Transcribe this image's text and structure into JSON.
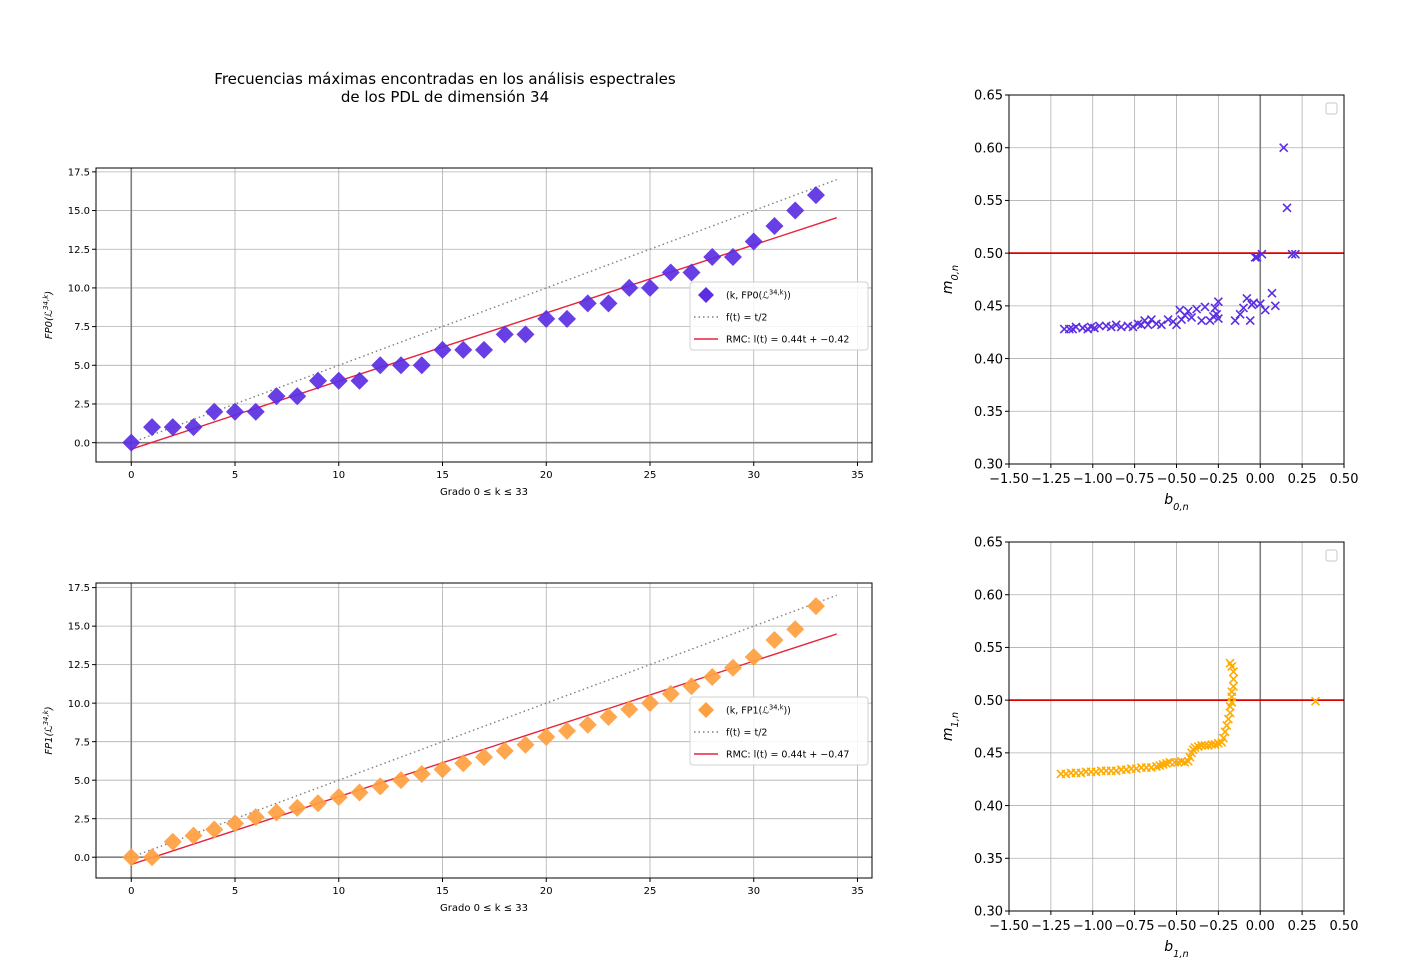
{
  "figure": {
    "title_line1": "Frecuencias máximas encontradas en los análisis espectrales",
    "title_line2": "de los PDL de dimensión 34"
  },
  "chart_data": [
    {
      "id": "fp0",
      "type": "scatter",
      "xlabel": "Grado 0 ≤ k ≤ 33",
      "ylabel": "FP0(ℒ^{34,k})",
      "xlim": [
        -1.7,
        35.7
      ],
      "ylim": [
        -1.25,
        17.75
      ],
      "xticks": [
        0,
        5,
        10,
        15,
        20,
        25,
        30,
        35
      ],
      "yticks": [
        0.0,
        2.5,
        5.0,
        7.5,
        10.0,
        12.5,
        15.0,
        17.5
      ],
      "xtick_labels": [
        "0",
        "5",
        "10",
        "15",
        "20",
        "25",
        "30",
        "35"
      ],
      "ytick_labels": [
        "0.0",
        "2.5",
        "5.0",
        "7.5",
        "10.0",
        "12.5",
        "15.0",
        "17.5"
      ],
      "grid": true,
      "legend_position": "center-right",
      "colors": {
        "points": "#5b2ee3",
        "fit": "#e8223a",
        "half": "#808080"
      },
      "series": [
        {
          "name": "(k, FP0(ℒ^{34,k}))",
          "kind": "diamond",
          "x": [
            0,
            1,
            2,
            3,
            4,
            5,
            6,
            7,
            8,
            9,
            10,
            11,
            12,
            13,
            14,
            15,
            16,
            17,
            18,
            19,
            20,
            21,
            22,
            23,
            24,
            25,
            26,
            27,
            28,
            29,
            30,
            31,
            32,
            33
          ],
          "y": [
            0,
            1,
            1,
            1,
            2,
            2,
            2,
            3,
            3,
            4,
            4,
            4,
            5,
            5,
            5,
            6,
            6,
            6,
            7,
            7,
            8,
            8,
            9,
            9,
            10,
            10,
            11,
            11,
            12,
            12,
            13,
            14,
            15,
            16
          ]
        },
        {
          "name": "f(t) = t/2",
          "kind": "dotted-line",
          "slope": 0.5,
          "intercept": 0,
          "x_range": [
            0,
            34
          ]
        },
        {
          "name": "RMC: l(t) = 0.44t + −0.42",
          "kind": "line",
          "slope": 0.44,
          "intercept": -0.42,
          "x_range": [
            0,
            34
          ]
        }
      ]
    },
    {
      "id": "fp1",
      "type": "scatter",
      "xlabel": "Grado 0 ≤ k ≤ 33",
      "ylabel": "FP1(ℒ^{34,k})",
      "xlim": [
        -1.7,
        35.7
      ],
      "ylim": [
        -1.35,
        17.8
      ],
      "xticks": [
        0,
        5,
        10,
        15,
        20,
        25,
        30,
        35
      ],
      "yticks": [
        0.0,
        2.5,
        5.0,
        7.5,
        10.0,
        12.5,
        15.0,
        17.5
      ],
      "xtick_labels": [
        "0",
        "5",
        "10",
        "15",
        "20",
        "25",
        "30",
        "35"
      ],
      "ytick_labels": [
        "0.0",
        "2.5",
        "5.0",
        "7.5",
        "10.0",
        "12.5",
        "15.0",
        "17.5"
      ],
      "grid": true,
      "legend_position": "center-right",
      "colors": {
        "points": "#ffa040",
        "fit": "#e8223a",
        "half": "#808080"
      },
      "series": [
        {
          "name": "(k, FP1(ℒ^{34,k}))",
          "kind": "diamond",
          "x": [
            0,
            1,
            2,
            3,
            4,
            5,
            6,
            7,
            8,
            9,
            10,
            11,
            12,
            13,
            14,
            15,
            16,
            17,
            18,
            19,
            20,
            21,
            22,
            23,
            24,
            25,
            26,
            27,
            28,
            29,
            30,
            31,
            32,
            33
          ],
          "y": [
            0,
            0,
            1,
            1.4,
            1.8,
            2.2,
            2.6,
            2.9,
            3.2,
            3.5,
            3.9,
            4.2,
            4.6,
            5.0,
            5.4,
            5.7,
            6.1,
            6.5,
            6.9,
            7.3,
            7.8,
            8.2,
            8.6,
            9.1,
            9.6,
            10.0,
            10.6,
            11.1,
            11.7,
            12.3,
            13.0,
            14.1,
            14.8,
            16.3
          ]
        },
        {
          "name": "f(t) = t/2",
          "kind": "dotted-line",
          "slope": 0.5,
          "intercept": 0,
          "x_range": [
            0,
            34
          ]
        },
        {
          "name": "RMC: l(t) = 0.44t + −0.47",
          "kind": "line",
          "slope": 0.44,
          "intercept": -0.47,
          "x_range": [
            0,
            34
          ]
        }
      ]
    },
    {
      "id": "b0m0",
      "type": "scatter",
      "xlabel": "b_{0,n}",
      "ylabel": "m_{0,n}",
      "xlim": [
        -1.5,
        0.5
      ],
      "ylim": [
        0.3,
        0.65
      ],
      "xticks": [
        -1.5,
        -1.25,
        -1.0,
        -0.75,
        -0.5,
        -0.25,
        0.0,
        0.25,
        0.5
      ],
      "yticks": [
        0.3,
        0.35,
        0.4,
        0.45,
        0.5,
        0.55,
        0.6,
        0.65
      ],
      "xtick_labels": [
        "−1.50",
        "−1.25",
        "−1.00",
        "−0.75",
        "−0.50",
        "−0.25",
        "0.00",
        "0.25",
        "0.50"
      ],
      "ytick_labels": [
        "0.30",
        "0.35",
        "0.40",
        "0.45",
        "0.50",
        "0.55",
        "0.60",
        "0.65"
      ],
      "grid": true,
      "legend_position": "top-right",
      "hline": 0.5,
      "vline": 0,
      "colors": {
        "points": "#5b2ee3",
        "hline": "#e00000",
        "vline": "#808080"
      },
      "points": {
        "x": [
          -1.17,
          -1.14,
          -1.12,
          -1.1,
          -1.06,
          -1.03,
          -1.01,
          -0.99,
          -0.96,
          -0.92,
          -0.89,
          -0.86,
          -0.83,
          -0.79,
          -0.76,
          -0.73,
          -0.71,
          -0.69,
          -0.67,
          -0.65,
          -0.62,
          -0.59,
          -0.55,
          -0.52,
          -0.5,
          -0.48,
          -0.47,
          -0.45,
          -0.43,
          -0.41,
          -0.38,
          -0.35,
          -0.33,
          -0.3,
          -0.28,
          -0.27,
          -0.26,
          -0.25,
          -0.25,
          -0.15,
          -0.12,
          -0.1,
          -0.08,
          -0.06,
          -0.05,
          -0.04,
          -0.03,
          -0.02,
          0.0,
          0.01,
          0.03,
          0.07,
          0.09,
          0.14,
          0.16,
          0.19,
          0.21
        ],
        "y": [
          0.428,
          0.428,
          0.428,
          0.43,
          0.429,
          0.428,
          0.43,
          0.429,
          0.431,
          0.431,
          0.43,
          0.432,
          0.43,
          0.431,
          0.43,
          0.433,
          0.432,
          0.436,
          0.432,
          0.437,
          0.433,
          0.432,
          0.437,
          0.435,
          0.432,
          0.446,
          0.437,
          0.441,
          0.445,
          0.439,
          0.447,
          0.436,
          0.449,
          0.436,
          0.44,
          0.448,
          0.442,
          0.438,
          0.454,
          0.436,
          0.442,
          0.448,
          0.457,
          0.436,
          0.451,
          0.453,
          0.496,
          0.496,
          0.452,
          0.499,
          0.446,
          0.462,
          0.45,
          0.6,
          0.543,
          0.499,
          0.499
        ]
      }
    },
    {
      "id": "b1m1",
      "type": "scatter",
      "xlabel": "b_{1,n}",
      "ylabel": "m_{1,n}",
      "xlim": [
        -1.5,
        0.5
      ],
      "ylim": [
        0.3,
        0.65
      ],
      "xticks": [
        -1.5,
        -1.25,
        -1.0,
        -0.75,
        -0.5,
        -0.25,
        0.0,
        0.25,
        0.5
      ],
      "yticks": [
        0.3,
        0.35,
        0.4,
        0.45,
        0.5,
        0.55,
        0.6,
        0.65
      ],
      "xtick_labels": [
        "−1.50",
        "−1.25",
        "−1.00",
        "−0.75",
        "−0.50",
        "−0.25",
        "0.00",
        "0.25",
        "0.50"
      ],
      "ytick_labels": [
        "0.30",
        "0.35",
        "0.40",
        "0.45",
        "0.50",
        "0.55",
        "0.60",
        "0.65"
      ],
      "grid": true,
      "legend_position": "top-right",
      "hline": 0.5,
      "vline": 0,
      "colors": {
        "points": "#ffaa00",
        "hline": "#e00000",
        "vline": "#808080"
      },
      "points": {
        "x": [
          -1.19,
          -1.16,
          -1.13,
          -1.1,
          -1.07,
          -1.04,
          -1.01,
          -0.98,
          -0.95,
          -0.92,
          -0.89,
          -0.86,
          -0.83,
          -0.8,
          -0.77,
          -0.74,
          -0.71,
          -0.68,
          -0.65,
          -0.62,
          -0.6,
          -0.58,
          -0.56,
          -0.54,
          -0.51,
          -0.49,
          -0.47,
          -0.45,
          -0.43,
          -0.42,
          -0.41,
          -0.4,
          -0.39,
          -0.37,
          -0.35,
          -0.33,
          -0.31,
          -0.29,
          -0.27,
          -0.25,
          -0.23,
          -0.22,
          -0.21,
          -0.2,
          -0.19,
          -0.18,
          -0.18,
          -0.17,
          -0.17,
          -0.17,
          -0.16,
          -0.16,
          -0.16,
          -0.17,
          -0.18,
          0.33
        ],
        "y": [
          0.43,
          0.43,
          0.431,
          0.431,
          0.431,
          0.432,
          0.432,
          0.432,
          0.433,
          0.433,
          0.433,
          0.433,
          0.434,
          0.434,
          0.435,
          0.435,
          0.436,
          0.436,
          0.436,
          0.437,
          0.438,
          0.439,
          0.44,
          0.441,
          0.441,
          0.441,
          0.442,
          0.441,
          0.442,
          0.446,
          0.45,
          0.453,
          0.455,
          0.456,
          0.457,
          0.457,
          0.457,
          0.458,
          0.458,
          0.459,
          0.46,
          0.464,
          0.47,
          0.476,
          0.482,
          0.488,
          0.494,
          0.498,
          0.503,
          0.508,
          0.513,
          0.52,
          0.527,
          0.532,
          0.535,
          0.499
        ]
      }
    }
  ]
}
